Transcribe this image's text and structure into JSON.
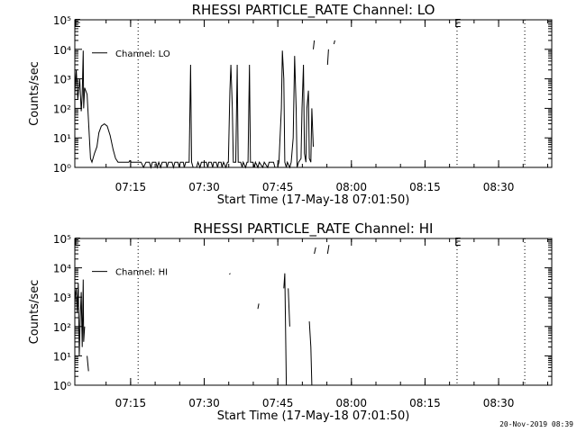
{
  "chart_data": [
    {
      "type": "line",
      "title": "RHESSI PARTICLE_RATE Channel: LO",
      "xlabel": "Start Time (17-May-18 07:01:50)",
      "ylabel": "Counts/sec",
      "yscale": "log",
      "xlim": [
        1.8,
        99
      ],
      "ylim": [
        1,
        100000
      ],
      "x_ticks": [
        {
          "t": 13.17,
          "label": "07:15"
        },
        {
          "t": 28.17,
          "label": "07:30"
        },
        {
          "t": 43.17,
          "label": "07:45"
        },
        {
          "t": 58.17,
          "label": "08:00"
        },
        {
          "t": 73.17,
          "label": "08:15"
        },
        {
          "t": 88.17,
          "label": "08:30"
        }
      ],
      "y_ticks": [
        {
          "v": 1,
          "label": "10⁰"
        },
        {
          "v": 10,
          "label": "10¹"
        },
        {
          "v": 100,
          "label": "10²"
        },
        {
          "v": 1000,
          "label": "10³"
        },
        {
          "v": 10000,
          "label": "10⁴"
        },
        {
          "v": 100000,
          "label": "10⁵"
        }
      ],
      "vlines": [
        14.7,
        79.7,
        93.5
      ],
      "e_marks": [
        {
          "t": 2.2,
          "label": "E"
        },
        {
          "t": 79.7,
          "label": "E"
        }
      ],
      "legend": {
        "label": "Channel: LO",
        "position": "top-left"
      },
      "series": [
        {
          "segments": [
            [
              [
                1.8,
                300
              ],
              [
                2.1,
                2000
              ],
              [
                2.4,
                200
              ],
              [
                2.8,
                1000
              ],
              [
                3.1,
                80
              ],
              [
                3.3,
                300
              ],
              [
                3.5,
                9000
              ],
              [
                3.6,
                100
              ],
              [
                3.8,
                500
              ],
              [
                4.3,
                300
              ],
              [
                5.0,
                2
              ],
              [
                5.3,
                1.5
              ],
              [
                5.8,
                3
              ],
              [
                6.3,
                5
              ],
              [
                6.7,
                15
              ],
              [
                7.2,
                25
              ],
              [
                7.8,
                30
              ],
              [
                8.4,
                25
              ],
              [
                9.0,
                12
              ],
              [
                9.6,
                4
              ],
              [
                10.1,
                2
              ],
              [
                10.6,
                1.5
              ],
              [
                12.8,
                1.5
              ],
              [
                13.0,
                1.7
              ],
              [
                13.3,
                1.5
              ],
              [
                15.3,
                1.5
              ],
              [
                15.8,
                1
              ],
              [
                16.3,
                1.5
              ],
              [
                17.0,
                1.5
              ],
              [
                17.3,
                1
              ],
              [
                17.6,
                1.5
              ],
              [
                18.3,
                1.5
              ],
              [
                18.6,
                1
              ],
              [
                18.9,
                1.5
              ],
              [
                19.3,
                1
              ],
              [
                19.6,
                1.5
              ],
              [
                20.4,
                1.5
              ],
              [
                20.6,
                1
              ],
              [
                20.9,
                1.5
              ],
              [
                21.6,
                1.5
              ],
              [
                21.9,
                1
              ],
              [
                22.2,
                1.5
              ],
              [
                22.8,
                1.5
              ],
              [
                23.1,
                1
              ],
              [
                23.3,
                1.5
              ],
              [
                23.9,
                1.5
              ],
              [
                24.1,
                1
              ],
              [
                24.4,
                1.5
              ],
              [
                25.1,
                1.5
              ],
              [
                25.4,
                3000
              ],
              [
                25.6,
                1.5
              ],
              [
                25.9,
                1
              ],
              [
                26.6,
                1
              ],
              [
                26.9,
                1.5
              ],
              [
                27.3,
                1
              ],
              [
                27.6,
                1.5
              ],
              [
                28.6,
                1.5
              ],
              [
                28.9,
                1
              ],
              [
                29.1,
                1.5
              ],
              [
                29.6,
                1.5
              ],
              [
                29.9,
                1
              ],
              [
                30.1,
                1.5
              ],
              [
                30.6,
                1.5
              ],
              [
                30.9,
                1
              ],
              [
                31.1,
                1.5
              ],
              [
                31.6,
                1.5
              ],
              [
                31.8,
                1
              ],
              [
                32.1,
                1.5
              ],
              [
                32.6,
                1
              ],
              [
                32.9,
                1.5
              ],
              [
                33.1,
                1.5
              ],
              [
                33.4,
                400
              ],
              [
                33.6,
                3000
              ],
              [
                33.9,
                100
              ],
              [
                34.1,
                1.5
              ],
              [
                34.6,
                1.5
              ],
              [
                34.9,
                3000
              ],
              [
                35.1,
                1.5
              ],
              [
                35.6,
                1.5
              ],
              [
                35.9,
                1
              ],
              [
                36.1,
                1.5
              ],
              [
                36.6,
                1
              ],
              [
                36.9,
                1.5
              ],
              [
                37.1,
                1.5
              ],
              [
                37.4,
                3000
              ],
              [
                37.6,
                1.5
              ],
              [
                38.1,
                1.5
              ],
              [
                38.4,
                1
              ],
              [
                38.6,
                1.5
              ],
              [
                39.1,
                1
              ],
              [
                39.4,
                1.5
              ],
              [
                40.1,
                1
              ],
              [
                40.4,
                1.5
              ],
              [
                41.1,
                1
              ],
              [
                41.4,
                1.5
              ],
              [
                42.3,
                1.5
              ],
              [
                42.6,
                1
              ],
              [
                43.1,
                1
              ],
              [
                43.4,
                1.5
              ],
              [
                43.9,
                100
              ],
              [
                44.1,
                9000
              ],
              [
                44.4,
                1000
              ],
              [
                44.6,
                1.5
              ],
              [
                44.9,
                1
              ],
              [
                45.1,
                1.5
              ],
              [
                45.6,
                1
              ],
              [
                45.9,
                1.5
              ],
              [
                46.3,
                10
              ],
              [
                46.6,
                6000
              ],
              [
                46.9,
                100
              ],
              [
                47.1,
                1
              ],
              [
                47.4,
                1.5
              ],
              [
                47.9,
                2
              ],
              [
                48.1,
                100
              ],
              [
                48.4,
                3000
              ],
              [
                48.6,
                3
              ],
              [
                48.9,
                1.5
              ],
              [
                49.1,
                100
              ],
              [
                49.4,
                400
              ],
              [
                49.6,
                2
              ],
              [
                49.9,
                1.5
              ],
              [
                50.1,
                100
              ],
              [
                50.4,
                5
              ]
            ],
            [
              [
                50.4,
                10000
              ],
              [
                50.6,
                20000
              ]
            ],
            [
              [
                53.3,
                3000
              ],
              [
                53.5,
                10000
              ]
            ],
            [
              [
                54.6,
                15000
              ],
              [
                54.8,
                20000
              ]
            ]
          ]
        }
      ]
    },
    {
      "type": "line",
      "title": "RHESSI PARTICLE_RATE Channel: HI",
      "xlabel": "Start Time (17-May-18 07:01:50)",
      "ylabel": "Counts/sec",
      "yscale": "log",
      "xlim": [
        1.8,
        99
      ],
      "ylim": [
        1,
        100000
      ],
      "x_ticks": [
        {
          "t": 13.17,
          "label": "07:15"
        },
        {
          "t": 28.17,
          "label": "07:30"
        },
        {
          "t": 43.17,
          "label": "07:45"
        },
        {
          "t": 58.17,
          "label": "08:00"
        },
        {
          "t": 73.17,
          "label": "08:15"
        },
        {
          "t": 88.17,
          "label": "08:30"
        }
      ],
      "y_ticks": [
        {
          "v": 1,
          "label": "10⁰"
        },
        {
          "v": 10,
          "label": "10¹"
        },
        {
          "v": 100,
          "label": "10²"
        },
        {
          "v": 1000,
          "label": "10³"
        },
        {
          "v": 10000,
          "label": "10⁴"
        },
        {
          "v": 100000,
          "label": "10⁵"
        }
      ],
      "vlines": [
        14.7,
        79.7,
        93.5
      ],
      "e_marks": [
        {
          "t": 2.2,
          "label": "E"
        },
        {
          "t": 79.7,
          "label": "E"
        }
      ],
      "legend": {
        "label": "Channel: HI",
        "position": "top-left"
      },
      "series": [
        {
          "segments": [
            [
              [
                1.8,
                800
              ],
              [
                2.1,
                2000
              ],
              [
                2.3,
                300
              ],
              [
                2.5,
                3000
              ],
              [
                2.7,
                10
              ],
              [
                2.9,
                200
              ],
              [
                3.1,
                1500
              ],
              [
                3.3,
                20
              ],
              [
                3.5,
                4000
              ],
              [
                3.6,
                30
              ],
              [
                3.8,
                100
              ]
            ],
            [
              [
                4.3,
                10
              ],
              [
                4.6,
                3
              ]
            ],
            [
              [
                33.3,
                6000
              ],
              [
                33.5,
                6500
              ]
            ],
            [
              [
                39.1,
                400
              ],
              [
                39.3,
                600
              ]
            ],
            [
              [
                44.4,
                2000
              ],
              [
                44.6,
                6500
              ],
              [
                44.9,
                1
              ]
            ],
            [
              [
                45.3,
                2000
              ],
              [
                45.6,
                100
              ]
            ],
            [
              [
                49.6,
                150
              ],
              [
                49.9,
                20
              ],
              [
                50.1,
                1
              ]
            ],
            [
              [
                50.6,
                30000
              ],
              [
                50.9,
                50000
              ]
            ],
            [
              [
                53.3,
                30000
              ],
              [
                53.6,
                60000
              ]
            ]
          ]
        }
      ]
    }
  ],
  "footer": {
    "timestamp": "20-Nov-2019 08:39"
  }
}
